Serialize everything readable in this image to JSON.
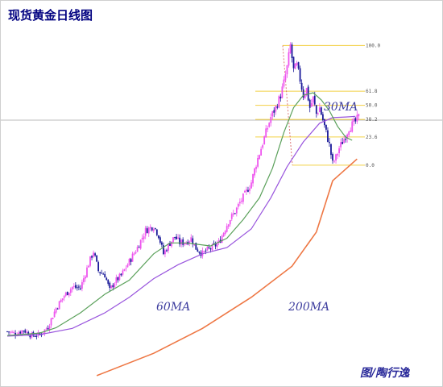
{
  "chart_data": {
    "type": "candlestick",
    "title": "现货黄金日线图",
    "credit": "图/陶行逸",
    "ylim": [
      850,
      1960
    ],
    "colors": {
      "up_candle": "#ee55ee",
      "down_candle": "#1a1a99",
      "ma30": "#5aa05a",
      "ma60": "#9955dd",
      "ma200": "#ee7744",
      "fibonacci": "#f2d044",
      "reference_line": "#bbbbbb",
      "projection": "#dd7777"
    },
    "fibonacci": {
      "high": 1920,
      "low": 1535,
      "levels": [
        {
          "label": "100.0",
          "ratio": 1.0
        },
        {
          "label": "61.8",
          "ratio": 0.618
        },
        {
          "label": "50.0",
          "ratio": 0.5
        },
        {
          "label": "38.2",
          "ratio": 0.382
        },
        {
          "label": "23.6",
          "ratio": 0.236
        },
        {
          "label": "0.0",
          "ratio": 0.0
        }
      ]
    },
    "horizontal_line": 1680,
    "series_labels": [
      {
        "name": "30MA",
        "key": "ma30"
      },
      {
        "name": "60MA",
        "key": "ma60"
      },
      {
        "name": "200MA",
        "key": "ma200"
      }
    ],
    "price_path": [
      [
        0,
        1000
      ],
      [
        5,
        993
      ],
      [
        10,
        1005
      ],
      [
        15,
        987
      ],
      [
        20,
        990
      ],
      [
        25,
        1015
      ],
      [
        30,
        1075
      ],
      [
        35,
        1115
      ],
      [
        40,
        1143
      ],
      [
        45,
        1140
      ],
      [
        50,
        1218
      ],
      [
        53,
        1258
      ],
      [
        56,
        1195
      ],
      [
        60,
        1182
      ],
      [
        63,
        1132
      ],
      [
        66,
        1160
      ],
      [
        70,
        1180
      ],
      [
        75,
        1225
      ],
      [
        80,
        1270
      ],
      [
        85,
        1325
      ],
      [
        90,
        1340
      ],
      [
        93,
        1310
      ],
      [
        96,
        1250
      ],
      [
        100,
        1285
      ],
      [
        103,
        1305
      ],
      [
        106,
        1285
      ],
      [
        110,
        1288
      ],
      [
        113,
        1300
      ],
      [
        116,
        1268
      ],
      [
        120,
        1250
      ],
      [
        123,
        1262
      ],
      [
        126,
        1270
      ],
      [
        130,
        1285
      ],
      [
        133,
        1320
      ],
      [
        136,
        1355
      ],
      [
        140,
        1385
      ],
      [
        143,
        1415
      ],
      [
        146,
        1440
      ],
      [
        150,
        1480
      ],
      [
        153,
        1540
      ],
      [
        156,
        1590
      ],
      [
        159,
        1640
      ],
      [
        162,
        1690
      ],
      [
        165,
        1720
      ],
      [
        168,
        1760
      ],
      [
        170,
        1800
      ],
      [
        172,
        1850
      ],
      [
        174,
        1920
      ],
      [
        176,
        1840
      ],
      [
        178,
        1855
      ],
      [
        180,
        1810
      ],
      [
        182,
        1760
      ],
      [
        184,
        1780
      ],
      [
        186,
        1720
      ],
      [
        188,
        1750
      ],
      [
        190,
        1700
      ],
      [
        192,
        1720
      ],
      [
        194,
        1680
      ],
      [
        196,
        1640
      ],
      [
        198,
        1600
      ],
      [
        200,
        1540
      ],
      [
        202,
        1560
      ],
      [
        204,
        1590
      ],
      [
        206,
        1610
      ],
      [
        208,
        1630
      ],
      [
        210,
        1655
      ],
      [
        212,
        1665
      ],
      [
        214,
        1675
      ],
      [
        216,
        1690
      ]
    ],
    "ma30": [
      [
        0,
        987
      ],
      [
        20,
        995
      ],
      [
        30,
        1012
      ],
      [
        45,
        1060
      ],
      [
        60,
        1120
      ],
      [
        75,
        1165
      ],
      [
        90,
        1250
      ],
      [
        100,
        1285
      ],
      [
        110,
        1285
      ],
      [
        125,
        1275
      ],
      [
        135,
        1300
      ],
      [
        145,
        1360
      ],
      [
        155,
        1430
      ],
      [
        163,
        1525
      ],
      [
        170,
        1640
      ],
      [
        176,
        1720
      ],
      [
        182,
        1760
      ],
      [
        188,
        1768
      ],
      [
        193,
        1745
      ],
      [
        198,
        1710
      ],
      [
        203,
        1660
      ],
      [
        208,
        1625
      ],
      [
        212,
        1615
      ]
    ],
    "ma60": [
      [
        0,
        985
      ],
      [
        20,
        990
      ],
      [
        40,
        1010
      ],
      [
        60,
        1060
      ],
      [
        75,
        1110
      ],
      [
        90,
        1170
      ],
      [
        105,
        1215
      ],
      [
        120,
        1250
      ],
      [
        135,
        1270
      ],
      [
        150,
        1330
      ],
      [
        162,
        1430
      ],
      [
        172,
        1530
      ],
      [
        182,
        1610
      ],
      [
        192,
        1670
      ],
      [
        200,
        1688
      ],
      [
        208,
        1690
      ],
      [
        214,
        1692
      ]
    ],
    "ma200": [
      [
        55,
        858
      ],
      [
        90,
        930
      ],
      [
        120,
        1010
      ],
      [
        150,
        1110
      ],
      [
        175,
        1210
      ],
      [
        190,
        1320
      ],
      [
        200,
        1485
      ],
      [
        215,
        1555
      ]
    ]
  }
}
